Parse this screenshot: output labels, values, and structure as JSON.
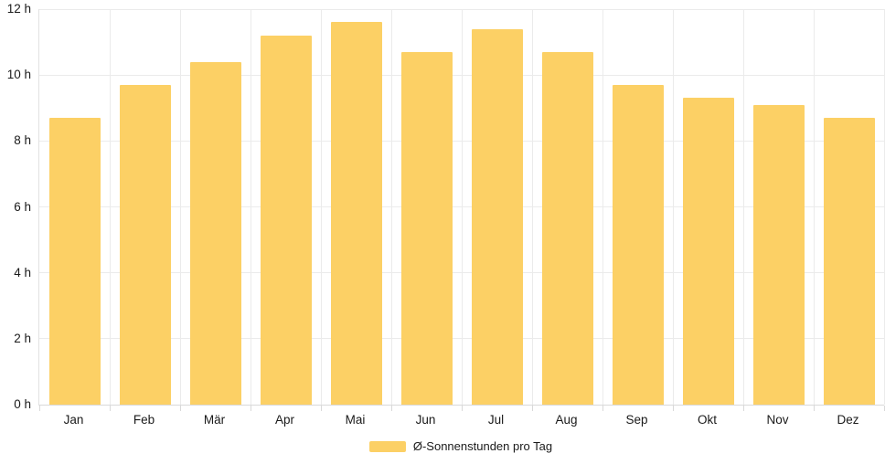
{
  "chart_data": {
    "type": "bar",
    "title": "",
    "xlabel": "",
    "ylabel": "",
    "unit": "h",
    "categories": [
      "Jan",
      "Feb",
      "Mär",
      "Apr",
      "Mai",
      "Jun",
      "Jul",
      "Aug",
      "Sep",
      "Okt",
      "Nov",
      "Dez"
    ],
    "series": [
      {
        "name": "Ø-Sonnenstunden pro Tag",
        "values": [
          8.7,
          9.7,
          10.4,
          11.2,
          11.6,
          10.7,
          11.4,
          10.7,
          9.7,
          9.3,
          9.1,
          8.7
        ],
        "color": "#fcd065"
      }
    ],
    "ylim": [
      0,
      12
    ],
    "y_ticks": [
      0,
      2,
      4,
      6,
      8,
      10,
      12
    ],
    "y_tick_labels": [
      "0 h",
      "2 h",
      "4 h",
      "6 h",
      "8 h",
      "10 h",
      "12 h"
    ],
    "grid": true,
    "legend": {
      "position": "bottom",
      "label": "Ø-Sonnenstunden pro Tag"
    }
  },
  "colors": {
    "background": "#ffffff",
    "bar": "#fcd065",
    "grid": "#ebebeb",
    "axis": "#d9d9d9",
    "text": "#1a1a1a"
  }
}
